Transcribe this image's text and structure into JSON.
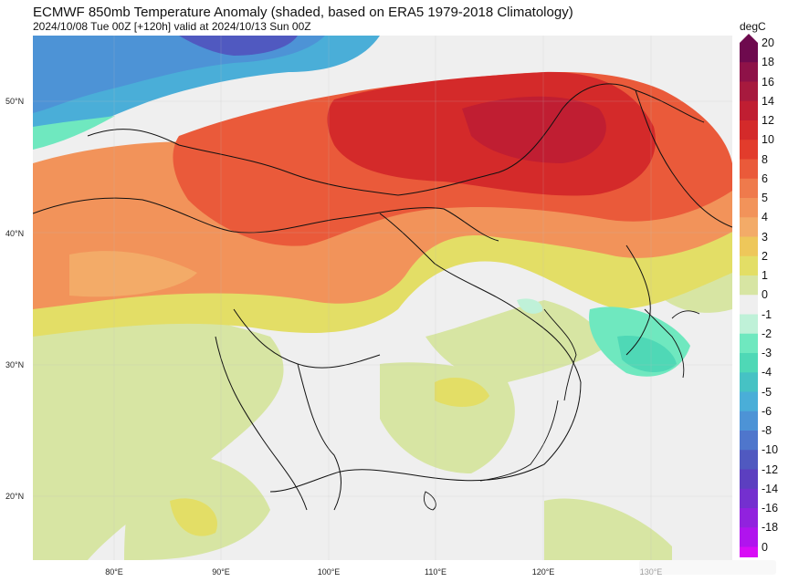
{
  "header": {
    "title": "ECMWF 850mb Temperature Anomaly (shaded, based on ERA5 1979-2018 Climatology)",
    "subtitle": "2024/10/08 Tue 00Z [+120h] valid at 2024/10/13 Sun 00Z"
  },
  "axes": {
    "lat_labels": [
      "50°N",
      "40°N",
      "30°N",
      "20°N"
    ],
    "lon_labels": [
      "80°E",
      "90°E",
      "100°E",
      "110°E",
      "120°E",
      "130°E"
    ]
  },
  "colorbar": {
    "unit": "degC",
    "levels": [
      {
        "label": "20",
        "color": "#6e0a4e"
      },
      {
        "label": "18",
        "color": "#8e1248"
      },
      {
        "label": "16",
        "color": "#a71a3e"
      },
      {
        "label": "14",
        "color": "#c01e32"
      },
      {
        "label": "12",
        "color": "#d42a2a"
      },
      {
        "label": "10",
        "color": "#e23c2c"
      },
      {
        "label": "8",
        "color": "#ea5a3a"
      },
      {
        "label": "6",
        "color": "#ef7a4c"
      },
      {
        "label": "5",
        "color": "#f2935a"
      },
      {
        "label": "4",
        "color": "#f3ab68"
      },
      {
        "label": "3",
        "color": "#eec75a"
      },
      {
        "label": "2",
        "color": "#e3de66"
      },
      {
        "label": "1",
        "color": "#d7e5a3"
      },
      {
        "label": "0",
        "color": "#efefef"
      },
      {
        "label": "-1",
        "color": "#bff1d8"
      },
      {
        "label": "-2",
        "color": "#6fe8bf"
      },
      {
        "label": "-3",
        "color": "#4fd8b6"
      },
      {
        "label": "-4",
        "color": "#46c2c4"
      },
      {
        "label": "-5",
        "color": "#4aaed8"
      },
      {
        "label": "-6",
        "color": "#4d93d6"
      },
      {
        "label": "-8",
        "color": "#4f76cc"
      },
      {
        "label": "-10",
        "color": "#5059c0"
      },
      {
        "label": "-12",
        "color": "#5c3fc0"
      },
      {
        "label": "-14",
        "color": "#7430cf"
      },
      {
        "label": "-16",
        "color": "#9122de"
      },
      {
        "label": "-18",
        "color": "#b014ee"
      },
      {
        "label": "0",
        "color": "#d80cf6"
      }
    ]
  }
}
